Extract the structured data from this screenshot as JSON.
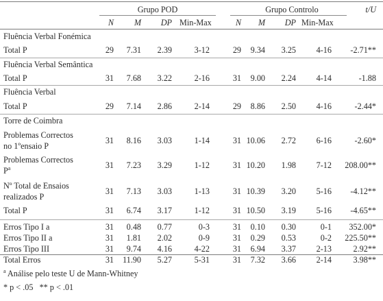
{
  "header": {
    "group_pod": "Grupo POD",
    "group_control": "Grupo Controlo",
    "stat_col": "t/U",
    "pod_cols": [
      "N",
      "M",
      "DP",
      "Min-Max"
    ],
    "ctrl_cols": [
      "N",
      "M",
      "DP",
      "Min-Max"
    ]
  },
  "sections": [
    {
      "title": "Fluência Verbal Fonémica",
      "rows": [
        {
          "label": "Total P",
          "pod": [
            "29",
            "7.31",
            "2.39",
            "3-12"
          ],
          "ctrl": [
            "29",
            "9.34",
            "3.25",
            "4-16"
          ],
          "stat": "-2.71**"
        }
      ]
    },
    {
      "title": "Fluência Verbal Semântica",
      "rows": [
        {
          "label": "Total P",
          "pod": [
            "31",
            "7.68",
            "3.22",
            "2-16"
          ],
          "ctrl": [
            "31",
            "9.00",
            "2.24",
            "4-14"
          ],
          "stat": "-1.88"
        }
      ]
    },
    {
      "title": "Fluência Verbal",
      "rows": [
        {
          "label": "Total P",
          "pod": [
            "29",
            "7.14",
            "2.86",
            "2-14"
          ],
          "ctrl": [
            "29",
            "8.86",
            "2.50",
            "4-16"
          ],
          "stat": "-2.44*"
        }
      ]
    },
    {
      "title": "Torre de Coimbra",
      "rows": [
        {
          "label": "Problemas Correctos",
          "label2": "no 1ºensaio  P",
          "pod": [
            "31",
            "8.16",
            "3.03",
            "1-14"
          ],
          "ctrl": [
            "31",
            "10.06",
            "2.72",
            "6-16"
          ],
          "stat": "-2.60*"
        },
        {
          "label": "Problemas Correctos",
          "label2": " P",
          "label2_sup": "a",
          "pod": [
            "31",
            "7.23",
            "3.29",
            "1-12"
          ],
          "ctrl": [
            "31",
            "10.20",
            "1.98",
            "7-12"
          ],
          "stat": "208.00**"
        },
        {
          "label": "Nº Total de Ensaios",
          "label2": "realizados P",
          "pod": [
            "31",
            "7.13",
            "3.03",
            "1-13"
          ],
          "ctrl": [
            "31",
            "10.39",
            "3.20",
            "5-16"
          ],
          "stat": "-4.12**"
        },
        {
          "label": "Total P",
          "pod": [
            "31",
            "6.74",
            "3.17",
            "1-12"
          ],
          "ctrl": [
            "31",
            "10.50",
            "3.19",
            "5-16"
          ],
          "stat": "-4.65**"
        }
      ]
    },
    {
      "title": "",
      "rows": [
        {
          "label": "Erros Tipo I a",
          "pod": [
            "31",
            "0.48",
            "0.77",
            "0-3"
          ],
          "ctrl": [
            "31",
            "0.10",
            "0.30",
            "0-1"
          ],
          "stat": "352.00*"
        },
        {
          "label": "Erros Tipo II a",
          "pod": [
            "31",
            "1.81",
            "2.02",
            "0-9"
          ],
          "ctrl": [
            "31",
            "0.29",
            "0.53",
            "0-2"
          ],
          "stat": "225.50**"
        },
        {
          "label": "Erros Tipo III",
          "pod": [
            "31",
            "9.74",
            "4.16",
            "4-22"
          ],
          "ctrl": [
            "31",
            "6.94",
            "3.37",
            "2-13"
          ],
          "stat": "2.92**"
        },
        {
          "label": "Total Erros",
          "pod": [
            "31",
            "11.90",
            "5.27",
            "5-31"
          ],
          "ctrl": [
            "31",
            "7.32",
            "3.66",
            "2-14"
          ],
          "stat": "3.98**"
        }
      ]
    }
  ],
  "footnotes": {
    "note_a_sup": "a",
    "note_a": " Análise pelo teste U de Mann-Whitney",
    "note_sig": "* p < .05   ** p < .01"
  }
}
